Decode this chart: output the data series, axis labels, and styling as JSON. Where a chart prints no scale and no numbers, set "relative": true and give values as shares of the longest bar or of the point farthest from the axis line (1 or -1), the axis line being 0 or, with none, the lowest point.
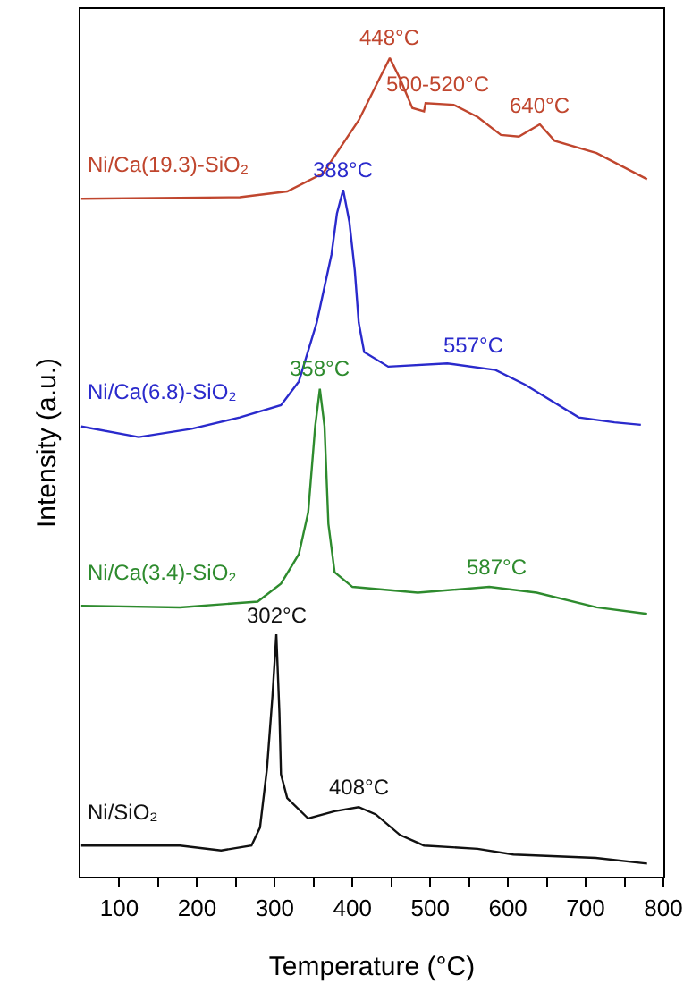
{
  "chart_data": {
    "type": "line",
    "relative": true,
    "xlabel": "Temperature (°C)",
    "ylabel": "Intensity (a.u.)",
    "xlim": [
      50,
      800
    ],
    "xticks": [
      100,
      {
        "value": 150,
        "label": null
      },
      200,
      {
        "value": 250,
        "label": null
      },
      300,
      {
        "value": 350,
        "label": null
      },
      400,
      {
        "value": 450,
        "label": null
      },
      500,
      {
        "value": 550,
        "label": null
      },
      600,
      {
        "value": 650,
        "label": null
      },
      700,
      {
        "value": 750,
        "label": null
      },
      800
    ],
    "grid": false,
    "legend": false,
    "marker": "none",
    "line_style": "solid",
    "series": [
      {
        "name": "Ni/SiO₂",
        "color": "#111111",
        "x": [
          51,
          102,
          178,
          231,
          270,
          281,
          290,
          297,
          302,
          306,
          308,
          316,
          343,
          377,
          408,
          430,
          461,
          492,
          561,
          607,
          713,
          779
        ],
        "values": [
          0.038,
          0.038,
          0.038,
          0.032,
          0.038,
          0.06,
          0.132,
          0.22,
          0.296,
          0.2,
          0.125,
          0.096,
          0.071,
          0.08,
          0.085,
          0.076,
          0.051,
          0.038,
          0.034,
          0.027,
          0.023,
          0.016
        ]
      },
      {
        "name": "Ni/Ca(3.4)-SiO₂",
        "color": "#2e8b2e",
        "x": [
          51,
          178,
          278,
          308,
          331,
          343,
          352,
          358,
          364,
          369,
          377,
          400,
          484,
          576,
          637,
          714,
          779
        ],
        "values": [
          0.331,
          0.329,
          0.336,
          0.358,
          0.394,
          0.445,
          0.55,
          0.596,
          0.55,
          0.431,
          0.372,
          0.354,
          0.347,
          0.354,
          0.347,
          0.329,
          0.321
        ]
      },
      {
        "name": "Ni/Ca(6.8)-SiO₂",
        "color": "#2a2acc",
        "x": [
          51,
          125,
          193,
          255,
          308,
          331,
          354,
          373,
          380,
          388,
          396,
          403,
          408,
          415,
          446,
          522,
          584,
          622,
          691,
          737,
          771
        ],
        "values": [
          0.55,
          0.537,
          0.547,
          0.561,
          0.576,
          0.605,
          0.677,
          0.76,
          0.81,
          0.839,
          0.8,
          0.74,
          0.677,
          0.641,
          0.623,
          0.627,
          0.619,
          0.601,
          0.561,
          0.555,
          0.552
        ]
      },
      {
        "name": "Ni/Ca(19.3)-SiO₂",
        "color": "#c0462e",
        "x": [
          51,
          255,
          316,
          362,
          408,
          431,
          448,
          461,
          477,
          492,
          494,
          530,
          561,
          591,
          614,
          641,
          660,
          714,
          779
        ],
        "values": [
          0.828,
          0.83,
          0.837,
          0.859,
          0.924,
          0.968,
          1.0,
          0.975,
          0.939,
          0.935,
          0.945,
          0.943,
          0.928,
          0.906,
          0.904,
          0.919,
          0.899,
          0.884,
          0.852
        ]
      }
    ],
    "annotations": [
      {
        "text": "302°C",
        "x": 302,
        "y": 0.296
      },
      {
        "text": "408°C",
        "x": 408,
        "y": 0.085
      },
      {
        "text": "358°C",
        "x": 358,
        "y": 0.596
      },
      {
        "text": "587°C",
        "x": 587,
        "y": 0.354
      },
      {
        "text": "388°C",
        "x": 388,
        "y": 0.839
      },
      {
        "text": "557°C",
        "x": 557,
        "y": 0.625
      },
      {
        "text": "448°C",
        "x": 448,
        "y": 1.0
      },
      {
        "text": "500-520°C",
        "x": 510,
        "y": 0.945
      },
      {
        "text": "640°C",
        "x": 641,
        "y": 0.919
      }
    ]
  }
}
